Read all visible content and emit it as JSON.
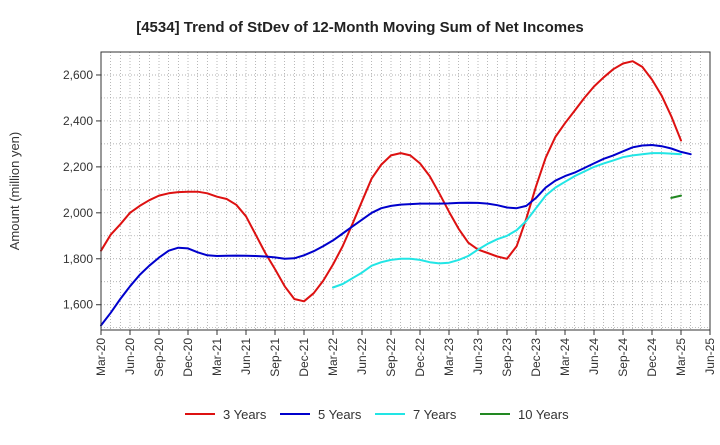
{
  "chart_data": {
    "type": "line",
    "title": "[4534]  Trend of StDev of 12-Month Moving Sum of Net Incomes",
    "xlabel": "",
    "ylabel": "Amount (million yen)",
    "x_ticks": [
      "Mar-20",
      "Jun-20",
      "Sep-20",
      "Dec-20",
      "Mar-21",
      "Jun-21",
      "Sep-21",
      "Dec-21",
      "Mar-22",
      "Jun-22",
      "Sep-22",
      "Dec-22",
      "Mar-23",
      "Jun-23",
      "Sep-23",
      "Dec-23",
      "Mar-24",
      "Jun-24",
      "Sep-24",
      "Dec-24",
      "Mar-25",
      "Jun-25"
    ],
    "y_ticks": [
      1600,
      1800,
      2000,
      2200,
      2400,
      2600
    ],
    "ylim": [
      1490,
      2700
    ],
    "xlim": [
      "2020-03",
      "2025-06"
    ],
    "grid": true,
    "legend_position": "bottom",
    "series": [
      {
        "name": "3 Years",
        "color": "#dd1111",
        "points": [
          [
            "2020-03",
            1835
          ],
          [
            "2020-04",
            1905
          ],
          [
            "2020-05",
            1950
          ],
          [
            "2020-06",
            2000
          ],
          [
            "2020-07",
            2030
          ],
          [
            "2020-08",
            2055
          ],
          [
            "2020-09",
            2075
          ],
          [
            "2020-10",
            2085
          ],
          [
            "2020-11",
            2090
          ],
          [
            "2020-12",
            2092
          ],
          [
            "2021-01",
            2092
          ],
          [
            "2021-02",
            2085
          ],
          [
            "2021-03",
            2070
          ],
          [
            "2021-04",
            2060
          ],
          [
            "2021-05",
            2035
          ],
          [
            "2021-06",
            1985
          ],
          [
            "2021-07",
            1905
          ],
          [
            "2021-08",
            1825
          ],
          [
            "2021-09",
            1755
          ],
          [
            "2021-10",
            1680
          ],
          [
            "2021-11",
            1625
          ],
          [
            "2021-12",
            1615
          ],
          [
            "2022-01",
            1650
          ],
          [
            "2022-02",
            1705
          ],
          [
            "2022-03",
            1775
          ],
          [
            "2022-04",
            1855
          ],
          [
            "2022-05",
            1950
          ],
          [
            "2022-06",
            2050
          ],
          [
            "2022-07",
            2150
          ],
          [
            "2022-08",
            2210
          ],
          [
            "2022-09",
            2250
          ],
          [
            "2022-10",
            2260
          ],
          [
            "2022-11",
            2250
          ],
          [
            "2022-12",
            2215
          ],
          [
            "2023-01",
            2160
          ],
          [
            "2023-02",
            2085
          ],
          [
            "2023-03",
            2005
          ],
          [
            "2023-04",
            1930
          ],
          [
            "2023-05",
            1870
          ],
          [
            "2023-06",
            1840
          ],
          [
            "2023-07",
            1825
          ],
          [
            "2023-08",
            1810
          ],
          [
            "2023-09",
            1800
          ],
          [
            "2023-10",
            1855
          ],
          [
            "2023-11",
            1975
          ],
          [
            "2023-12",
            2115
          ],
          [
            "2024-01",
            2240
          ],
          [
            "2024-02",
            2330
          ],
          [
            "2024-03",
            2390
          ],
          [
            "2024-04",
            2445
          ],
          [
            "2024-05",
            2500
          ],
          [
            "2024-06",
            2550
          ],
          [
            "2024-07",
            2590
          ],
          [
            "2024-08",
            2625
          ],
          [
            "2024-09",
            2650
          ],
          [
            "2024-10",
            2660
          ],
          [
            "2024-11",
            2635
          ],
          [
            "2024-12",
            2580
          ],
          [
            "2025-01",
            2510
          ],
          [
            "2025-02",
            2420
          ],
          [
            "2025-03",
            2315
          ]
        ]
      },
      {
        "name": "5 Years",
        "color": "#0000cc",
        "points": [
          [
            "2020-03",
            1510
          ],
          [
            "2020-04",
            1565
          ],
          [
            "2020-05",
            1625
          ],
          [
            "2020-06",
            1680
          ],
          [
            "2020-07",
            1730
          ],
          [
            "2020-08",
            1770
          ],
          [
            "2020-09",
            1805
          ],
          [
            "2020-10",
            1835
          ],
          [
            "2020-11",
            1848
          ],
          [
            "2020-12",
            1845
          ],
          [
            "2021-01",
            1828
          ],
          [
            "2021-02",
            1815
          ],
          [
            "2021-03",
            1812
          ],
          [
            "2021-04",
            1813
          ],
          [
            "2021-05",
            1814
          ],
          [
            "2021-06",
            1813
          ],
          [
            "2021-07",
            1812
          ],
          [
            "2021-08",
            1810
          ],
          [
            "2021-09",
            1806
          ],
          [
            "2021-10",
            1800
          ],
          [
            "2021-11",
            1802
          ],
          [
            "2021-12",
            1815
          ],
          [
            "2022-01",
            1833
          ],
          [
            "2022-02",
            1855
          ],
          [
            "2022-03",
            1880
          ],
          [
            "2022-04",
            1910
          ],
          [
            "2022-05",
            1940
          ],
          [
            "2022-06",
            1970
          ],
          [
            "2022-07",
            2000
          ],
          [
            "2022-08",
            2020
          ],
          [
            "2022-09",
            2030
          ],
          [
            "2022-10",
            2036
          ],
          [
            "2022-11",
            2038
          ],
          [
            "2022-12",
            2040
          ],
          [
            "2023-01",
            2040
          ],
          [
            "2023-02",
            2040
          ],
          [
            "2023-03",
            2041
          ],
          [
            "2023-04",
            2043
          ],
          [
            "2023-05",
            2044
          ],
          [
            "2023-06",
            2043
          ],
          [
            "2023-07",
            2040
          ],
          [
            "2023-08",
            2033
          ],
          [
            "2023-09",
            2023
          ],
          [
            "2023-10",
            2020
          ],
          [
            "2023-11",
            2030
          ],
          [
            "2023-12",
            2065
          ],
          [
            "2024-01",
            2110
          ],
          [
            "2024-02",
            2140
          ],
          [
            "2024-03",
            2160
          ],
          [
            "2024-04",
            2175
          ],
          [
            "2024-05",
            2195
          ],
          [
            "2024-06",
            2215
          ],
          [
            "2024-07",
            2235
          ],
          [
            "2024-08",
            2250
          ],
          [
            "2024-09",
            2268
          ],
          [
            "2024-10",
            2285
          ],
          [
            "2024-11",
            2293
          ],
          [
            "2024-12",
            2295
          ],
          [
            "2025-01",
            2290
          ],
          [
            "2025-02",
            2280
          ],
          [
            "2025-03",
            2265
          ],
          [
            "2025-04",
            2255
          ]
        ]
      },
      {
        "name": "7 Years",
        "color": "#22e5e5",
        "points": [
          [
            "2022-03",
            1675
          ],
          [
            "2022-04",
            1690
          ],
          [
            "2022-05",
            1715
          ],
          [
            "2022-06",
            1740
          ],
          [
            "2022-07",
            1770
          ],
          [
            "2022-08",
            1785
          ],
          [
            "2022-09",
            1795
          ],
          [
            "2022-10",
            1800
          ],
          [
            "2022-11",
            1800
          ],
          [
            "2022-12",
            1795
          ],
          [
            "2023-01",
            1785
          ],
          [
            "2023-02",
            1780
          ],
          [
            "2023-03",
            1783
          ],
          [
            "2023-04",
            1795
          ],
          [
            "2023-05",
            1812
          ],
          [
            "2023-06",
            1840
          ],
          [
            "2023-07",
            1865
          ],
          [
            "2023-08",
            1885
          ],
          [
            "2023-09",
            1900
          ],
          [
            "2023-10",
            1925
          ],
          [
            "2023-11",
            1965
          ],
          [
            "2023-12",
            2020
          ],
          [
            "2024-01",
            2075
          ],
          [
            "2024-02",
            2110
          ],
          [
            "2024-03",
            2135
          ],
          [
            "2024-04",
            2160
          ],
          [
            "2024-05",
            2180
          ],
          [
            "2024-06",
            2200
          ],
          [
            "2024-07",
            2215
          ],
          [
            "2024-08",
            2228
          ],
          [
            "2024-09",
            2242
          ],
          [
            "2024-10",
            2250
          ],
          [
            "2024-11",
            2255
          ],
          [
            "2024-12",
            2260
          ],
          [
            "2025-01",
            2260
          ],
          [
            "2025-02",
            2258
          ],
          [
            "2025-03",
            2255
          ]
        ]
      },
      {
        "name": "10 Years",
        "color": "#228822",
        "points": [
          [
            "2025-02",
            2065
          ],
          [
            "2025-03",
            2075
          ]
        ]
      }
    ]
  }
}
